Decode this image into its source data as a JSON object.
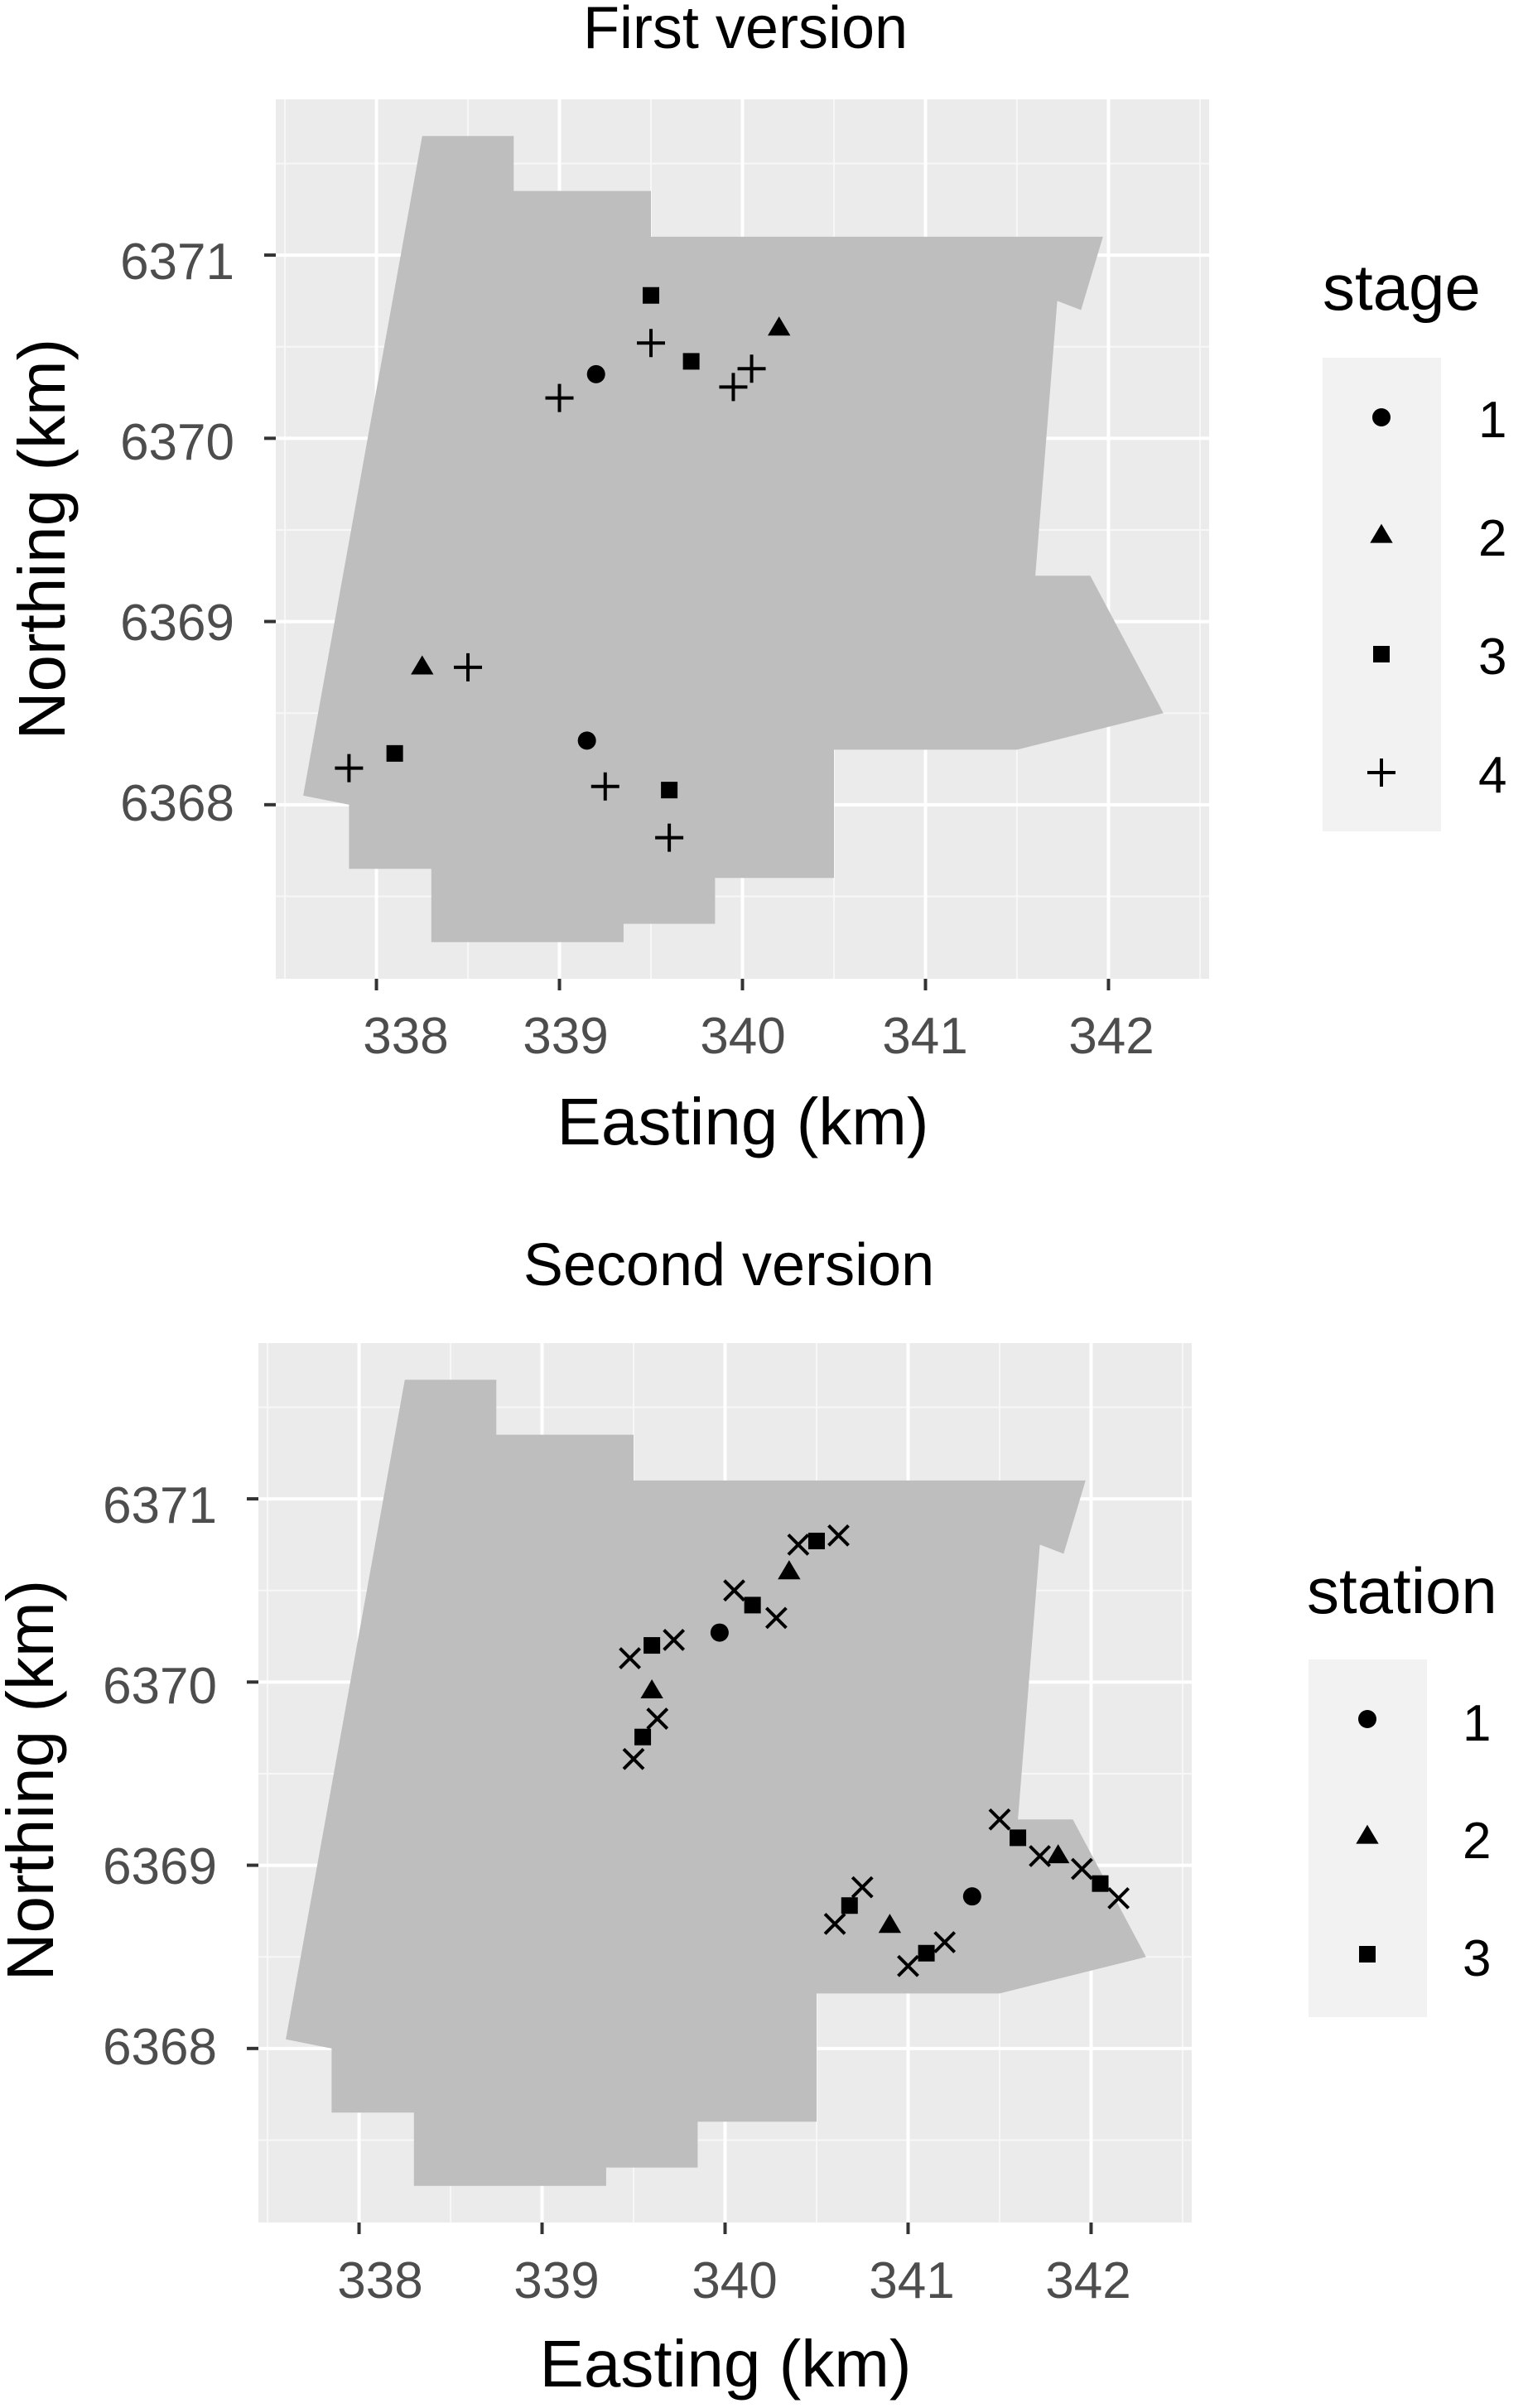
{
  "colors": {
    "panel_background": "#ebebeb",
    "grid_major": "#ffffff",
    "grid_minor": "#f7f7f7",
    "map_region": "#bebebe",
    "point": "#000000",
    "tick_label": "#4d4d4d",
    "legend_key_background": "#f2f2f2"
  },
  "chart_data": [
    {
      "type": "scatter",
      "title": "First version",
      "xlabel": "Easting (km)",
      "ylabel": "Northing (km)",
      "xlim": [
        337.45,
        342.55
      ],
      "ylim": [
        6367.05,
        6371.85
      ],
      "x_ticks": [
        338,
        339,
        340,
        341,
        342
      ],
      "y_ticks": [
        6368,
        6369,
        6370,
        6371
      ],
      "x_tick_labels": [
        "338",
        "339",
        "340",
        "341",
        "342"
      ],
      "y_tick_labels": [
        "6368",
        "6369",
        "6370",
        "6371"
      ],
      "grid": true,
      "legend": {
        "title": "stage",
        "placement": "right",
        "entries": [
          {
            "label": "1",
            "shape": "circle"
          },
          {
            "label": "2",
            "shape": "triangle"
          },
          {
            "label": "3",
            "shape": "square"
          },
          {
            "label": "4",
            "shape": "plus"
          }
        ]
      },
      "region": [
        [
          338.25,
          6371.65
        ],
        [
          338.75,
          6371.65
        ],
        [
          338.75,
          6371.35
        ],
        [
          339.5,
          6371.35
        ],
        [
          339.5,
          6371.1
        ],
        [
          341.5,
          6371.1
        ],
        [
          341.97,
          6371.1
        ],
        [
          341.85,
          6370.7
        ],
        [
          341.72,
          6370.75
        ],
        [
          341.6,
          6369.25
        ],
        [
          341.9,
          6369.25
        ],
        [
          342.3,
          6368.5
        ],
        [
          341.5,
          6368.3
        ],
        [
          340.5,
          6368.3
        ],
        [
          340.5,
          6367.6
        ],
        [
          339.85,
          6367.6
        ],
        [
          339.85,
          6367.35
        ],
        [
          339.35,
          6367.35
        ],
        [
          339.35,
          6367.25
        ],
        [
          338.3,
          6367.25
        ],
        [
          338.3,
          6367.65
        ],
        [
          337.85,
          6367.65
        ],
        [
          337.85,
          6368.0
        ],
        [
          337.6,
          6368.05
        ]
      ],
      "series": [
        {
          "name": "1",
          "shape": "circle",
          "points": [
            [
              339.2,
              6370.35
            ],
            [
              339.15,
              6368.35
            ]
          ]
        },
        {
          "name": "2",
          "shape": "triangle",
          "points": [
            [
              340.2,
              6370.6
            ],
            [
              338.25,
              6368.75
            ]
          ]
        },
        {
          "name": "3",
          "shape": "square",
          "points": [
            [
              339.5,
              6370.78
            ],
            [
              339.72,
              6370.42
            ],
            [
              338.1,
              6368.28
            ],
            [
              339.6,
              6368.08
            ]
          ]
        },
        {
          "name": "4",
          "shape": "plus",
          "points": [
            [
              339.0,
              6370.22
            ],
            [
              339.5,
              6370.52
            ],
            [
              339.95,
              6370.28
            ],
            [
              340.05,
              6370.38
            ],
            [
              337.85,
              6368.2
            ],
            [
              338.5,
              6368.75
            ],
            [
              339.25,
              6368.1
            ],
            [
              339.6,
              6367.82
            ]
          ]
        }
      ]
    },
    {
      "type": "scatter",
      "title": "Second version",
      "xlabel": "Easting (km)",
      "ylabel": "Northing (km)",
      "xlim": [
        337.45,
        342.55
      ],
      "ylim": [
        6367.05,
        6371.85
      ],
      "x_ticks": [
        338,
        339,
        340,
        341,
        342
      ],
      "y_ticks": [
        6368,
        6369,
        6370,
        6371
      ],
      "x_tick_labels": [
        "338",
        "339",
        "340",
        "341",
        "342"
      ],
      "y_tick_labels": [
        "6368",
        "6369",
        "6370",
        "6371"
      ],
      "grid": true,
      "legend": {
        "title": "station",
        "placement": "right",
        "entries": [
          {
            "label": "1",
            "shape": "circle"
          },
          {
            "label": "2",
            "shape": "triangle"
          },
          {
            "label": "3",
            "shape": "square"
          }
        ]
      },
      "region": [
        [
          338.25,
          6371.65
        ],
        [
          338.75,
          6371.65
        ],
        [
          338.75,
          6371.35
        ],
        [
          339.5,
          6371.35
        ],
        [
          339.5,
          6371.1
        ],
        [
          341.5,
          6371.1
        ],
        [
          341.97,
          6371.1
        ],
        [
          341.85,
          6370.7
        ],
        [
          341.72,
          6370.75
        ],
        [
          341.6,
          6369.25
        ],
        [
          341.9,
          6369.25
        ],
        [
          342.3,
          6368.5
        ],
        [
          341.5,
          6368.3
        ],
        [
          340.5,
          6368.3
        ],
        [
          340.5,
          6367.6
        ],
        [
          339.85,
          6367.6
        ],
        [
          339.85,
          6367.35
        ],
        [
          339.35,
          6367.35
        ],
        [
          339.35,
          6367.25
        ],
        [
          338.3,
          6367.25
        ],
        [
          338.3,
          6367.65
        ],
        [
          337.85,
          6367.65
        ],
        [
          337.85,
          6368.0
        ],
        [
          337.6,
          6368.05
        ]
      ],
      "series": [
        {
          "name": "1",
          "shape": "circle",
          "points": [
            [
              339.97,
              6370.27
            ],
            [
              341.35,
              6368.83
            ]
          ]
        },
        {
          "name": "2",
          "shape": "triangle",
          "points": [
            [
              339.6,
              6369.95
            ],
            [
              340.35,
              6370.6
            ],
            [
              340.9,
              6368.67
            ],
            [
              341.82,
              6369.05
            ]
          ]
        },
        {
          "name": "3",
          "shape": "square",
          "points": [
            [
              339.55,
              6369.7
            ],
            [
              339.6,
              6370.2
            ],
            [
              340.15,
              6370.42
            ],
            [
              340.5,
              6370.77
            ],
            [
              340.68,
              6368.78
            ],
            [
              341.1,
              6368.52
            ],
            [
              341.6,
              6369.15
            ],
            [
              342.05,
              6368.9
            ]
          ]
        },
        {
          "name": "cross",
          "shape": "cross",
          "points": [
            [
              339.5,
              6369.58
            ],
            [
              339.63,
              6369.8
            ],
            [
              339.48,
              6370.13
            ],
            [
              339.72,
              6370.23
            ],
            [
              340.05,
              6370.5
            ],
            [
              340.28,
              6370.35
            ],
            [
              340.4,
              6370.75
            ],
            [
              340.62,
              6370.8
            ],
            [
              340.6,
              6368.68
            ],
            [
              340.75,
              6368.88
            ],
            [
              341.0,
              6368.45
            ],
            [
              341.2,
              6368.58
            ],
            [
              341.5,
              6369.25
            ],
            [
              341.72,
              6369.05
            ],
            [
              341.95,
              6368.98
            ],
            [
              342.15,
              6368.82
            ]
          ]
        }
      ]
    }
  ]
}
